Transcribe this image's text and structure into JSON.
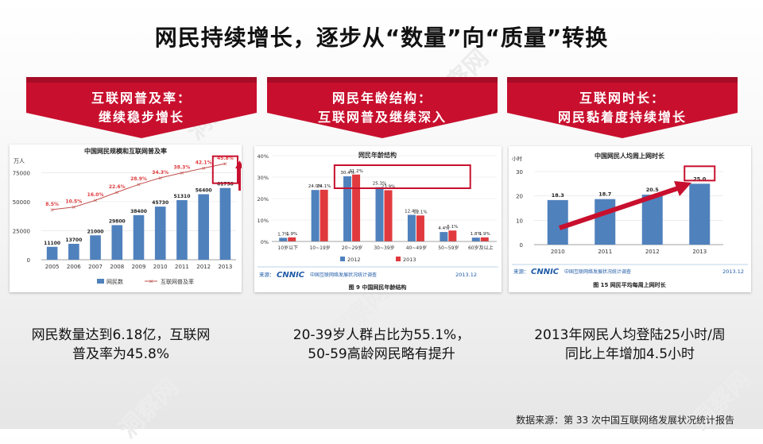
{
  "title": "网民持续增长，逐步从“数量”向“质量”转换",
  "banners": [
    {
      "line1": "互联网普及率：",
      "line2": "继续稳步增长"
    },
    {
      "line1": "网民年龄结构：",
      "line2": "互联网普及继续深入"
    },
    {
      "line1": "互联网时长：",
      "line2": "网民黏着度持续增长"
    }
  ],
  "captions": [
    {
      "line1": "网民数量达到6.18亿，互联网",
      "line2": "普及率为45.8%"
    },
    {
      "line1": "20-39岁人群占比为55.1%，",
      "line2": "50-59高龄网民略有提升"
    },
    {
      "line1": "2013年网民人均登陆25小时/周",
      "line2": "同比上年增加4.5小时"
    }
  ],
  "source_note": "数据来源：第 33 次中国互联网络发展状况统计报告",
  "watermark": "洞察网",
  "colors": {
    "accent_red": "#c8102e",
    "bar_blue": "#4f81bd",
    "bar_red": "#e03a3e",
    "line_red": "#c0504d"
  },
  "chart_data": [
    {
      "type": "bar",
      "title": "中国网民规模和互联网普及率",
      "ylabel": "万人",
      "categories": [
        "2005",
        "2006",
        "2007",
        "2008",
        "2009",
        "2010",
        "2011",
        "2012",
        "2013"
      ],
      "series": [
        {
          "name": "网民数",
          "type": "bar",
          "values": [
            11100,
            13700,
            21000,
            29800,
            38400,
            45730,
            51310,
            56400,
            61758
          ]
        },
        {
          "name": "互联网普及率",
          "type": "line",
          "values": [
            "8.5%",
            "10.5%",
            "16.0%",
            "22.6%",
            "28.9%",
            "34.3%",
            "38.3%",
            "42.1%",
            "45.8%"
          ],
          "numeric": [
            8.5,
            10.5,
            16.0,
            22.6,
            28.9,
            34.3,
            38.3,
            42.1,
            45.8
          ]
        }
      ],
      "yticks": [
        "0",
        "25000",
        "50000",
        "75000"
      ],
      "ylim": [
        0,
        80000
      ],
      "legend": "bottom",
      "highlight": "2013"
    },
    {
      "type": "bar",
      "title": "网民年龄结构",
      "categories": [
        "10岁以下",
        "10~19岁",
        "20~29岁",
        "30~39岁",
        "40~49岁",
        "50~59岁",
        "60岁及以上"
      ],
      "series": [
        {
          "name": "2012",
          "values": [
            1.7,
            24.0,
            30.4,
            25.3,
            12.4,
            4.4,
            1.8
          ],
          "labels": [
            "1.7%",
            "24.0%",
            "30.4%",
            "25.3%",
            "12.4%",
            "4.4%",
            "1.8%"
          ]
        },
        {
          "name": "2013",
          "values": [
            1.9,
            24.1,
            31.2,
            23.9,
            12.1,
            5.1,
            1.9
          ],
          "labels": [
            "1.9%",
            "24.1%",
            "31.2%",
            "23.9%",
            "12.1%",
            "5.1%",
            "1.9%"
          ]
        }
      ],
      "yticks": [
        "0%",
        "10%",
        "20%",
        "30%",
        "40%"
      ],
      "ylim": [
        0,
        40
      ],
      "legend": "bottom",
      "footer_source": "来源：",
      "footer_brand": "CNNIC",
      "footer_text": "中国互联网络发展状况统计调查",
      "footer_date": "2013.12",
      "figure_caption": "图 9 中国网民年龄结构"
    },
    {
      "type": "bar",
      "title": "中国网民人均周上网时长",
      "ylabel": "小时",
      "categories": [
        "2010",
        "2011",
        "2012",
        "2013"
      ],
      "values": [
        18.3,
        18.7,
        20.5,
        25.0
      ],
      "value_labels": [
        "18.3",
        "18.7",
        "20.5",
        "25.0"
      ],
      "yticks": [
        "0",
        "10",
        "20",
        "30"
      ],
      "ylim": [
        0,
        30
      ],
      "footer_source": "来源：",
      "footer_brand": "CNNIC",
      "footer_text": "中国互联网络发展状况统计调查",
      "footer_date": "2013.12",
      "figure_caption": "图 15 网民平均每周上网时长"
    }
  ]
}
